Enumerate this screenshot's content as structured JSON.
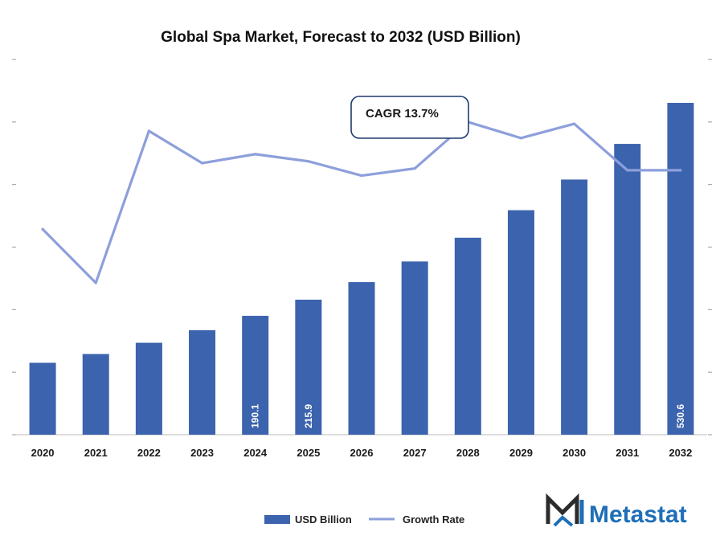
{
  "chart_data": {
    "type": "bar",
    "title": "Global Spa Market, Forecast to 2032 (USD Billion)",
    "categories": [
      "2020",
      "2021",
      "2022",
      "2023",
      "2024",
      "2025",
      "2026",
      "2027",
      "2028",
      "2029",
      "2030",
      "2031",
      "2032"
    ],
    "series": [
      {
        "name": "USD Billion",
        "type": "bar",
        "values": [
          115,
          129,
          147,
          167,
          190.1,
          215.9,
          244,
          277,
          315,
          359,
          408,
          465,
          530.6
        ],
        "value_labels": [
          "",
          "",
          "",
          "",
          "190.1",
          "215.9",
          "",
          "",
          "",
          "",
          "",
          "",
          "530.6"
        ],
        "color": "#3c63ad"
      },
      {
        "name": "Growth Rate",
        "type": "line",
        "values": [
          11.5,
          8.5,
          17.0,
          15.2,
          15.7,
          15.3,
          14.5,
          14.9,
          17.5,
          16.6,
          17.4,
          14.8,
          14.8
        ],
        "color": "#8d9fdb"
      }
    ],
    "ylim": [
      0,
      600
    ],
    "y2lim": [
      0,
      21
    ],
    "annotation": "CAGR 13.7%",
    "legend_position": "bottom",
    "grid": false
  },
  "brand": {
    "name": "Metastat",
    "color": "#1e6fb8",
    "mark_color": "#2b2b2b"
  }
}
